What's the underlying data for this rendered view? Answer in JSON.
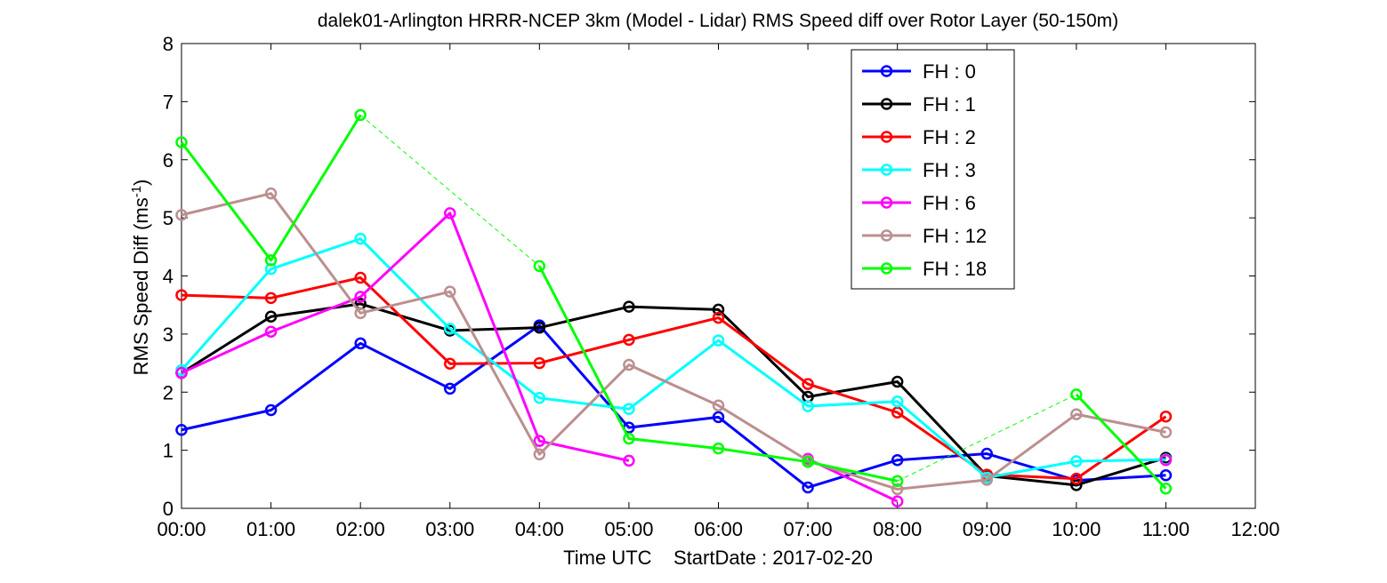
{
  "chart_data": {
    "type": "line",
    "title": "dalek01-Arlington HRRR-NCEP 3km (Model - Lidar) RMS Speed diff over Rotor Layer (50-150m)",
    "xlabel": "Time UTC    StartDate : 2017-02-20",
    "ylabel_main": "RMS Speed Diff (ms",
    "ylabel_sup": "-1",
    "ylabel_close": ")",
    "xlim": [
      0,
      12
    ],
    "ylim": [
      0,
      8
    ],
    "x_ticks": [
      0,
      1,
      2,
      3,
      4,
      5,
      6,
      7,
      8,
      9,
      10,
      11,
      12
    ],
    "x_tick_labels": [
      "00:00",
      "01:00",
      "02:00",
      "03:00",
      "04:00",
      "05:00",
      "06:00",
      "07:00",
      "08:00",
      "09:00",
      "10:00",
      "11:00",
      "12:00"
    ],
    "y_ticks": [
      0,
      1,
      2,
      3,
      4,
      5,
      6,
      7,
      8
    ],
    "y_tick_labels": [
      "0",
      "1",
      "2",
      "3",
      "4",
      "5",
      "6",
      "7",
      "8"
    ],
    "grid": false,
    "legend_position": "top-right",
    "series": [
      {
        "name": "FH : 0",
        "color": "#0000ff",
        "x": [
          0,
          1,
          2,
          3,
          4,
          5,
          6,
          7,
          8,
          9,
          10,
          11
        ],
        "y": [
          1.35,
          1.69,
          2.84,
          2.06,
          3.15,
          1.39,
          1.57,
          0.36,
          0.83,
          0.94,
          0.48,
          0.57
        ]
      },
      {
        "name": "FH : 1",
        "color": "#000000",
        "x": [
          0,
          1,
          2,
          3,
          4,
          5,
          6,
          7,
          8,
          9,
          10,
          11
        ],
        "y": [
          2.33,
          3.3,
          3.52,
          3.06,
          3.11,
          3.47,
          3.42,
          1.92,
          2.18,
          0.56,
          0.4,
          0.87
        ]
      },
      {
        "name": "FH : 2",
        "color": "#ff0000",
        "x": [
          0,
          1,
          2,
          3,
          4,
          5,
          6,
          7,
          8,
          9,
          10,
          11
        ],
        "y": [
          3.67,
          3.62,
          3.97,
          2.49,
          2.5,
          2.9,
          3.28,
          2.14,
          1.65,
          0.58,
          0.51,
          1.58
        ]
      },
      {
        "name": "FH : 3",
        "color": "#00ffff",
        "x": [
          0,
          1,
          2,
          3,
          4,
          5,
          6,
          7,
          8,
          9,
          10,
          11
        ],
        "y": [
          2.38,
          4.12,
          4.64,
          3.09,
          1.9,
          1.71,
          2.89,
          1.76,
          1.84,
          0.53,
          0.81,
          0.84
        ]
      },
      {
        "name": "FH : 6",
        "color": "#ff00ff",
        "x": [
          0,
          1,
          2,
          3,
          4,
          5,
          7,
          8,
          11
        ],
        "y": [
          2.33,
          3.04,
          3.64,
          5.08,
          1.16,
          0.82,
          0.85,
          0.12,
          0.83
        ],
        "segments": [
          [
            0,
            6
          ],
          [
            6,
            8
          ]
        ],
        "dashed": [
          [
            8,
            9
          ]
        ]
      },
      {
        "name": "FH : 12",
        "color": "#bc8f8f",
        "x": [
          0,
          1,
          2,
          3,
          4,
          5,
          6,
          7,
          8,
          9,
          10,
          11
        ],
        "y": [
          5.05,
          5.42,
          3.36,
          3.73,
          0.93,
          2.47,
          1.77,
          0.82,
          0.33,
          0.49,
          1.62,
          1.31
        ]
      },
      {
        "name": "FH : 18",
        "color": "#00ff00",
        "x": [
          0,
          1,
          2,
          4,
          5,
          6,
          7,
          8,
          10,
          11
        ],
        "y": [
          6.3,
          4.27,
          6.77,
          4.17,
          1.2,
          1.03,
          0.8,
          0.47,
          1.96,
          0.34
        ],
        "segments": [
          [
            0,
            3
          ],
          [
            3,
            8
          ],
          [
            8,
            10
          ]
        ],
        "dashed": [
          [
            2,
            3
          ],
          [
            7,
            8
          ]
        ]
      }
    ]
  }
}
